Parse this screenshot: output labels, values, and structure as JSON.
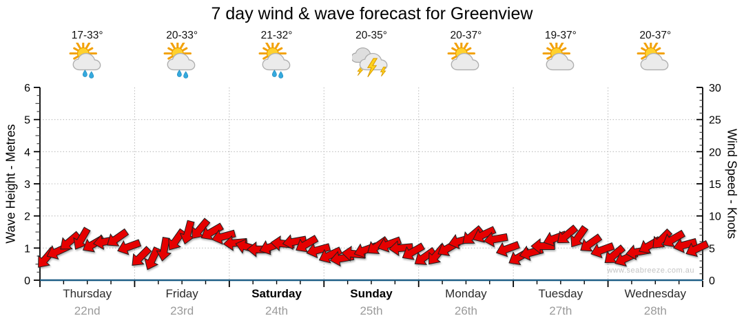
{
  "page": {
    "title": "7 day wind & wave forecast for Greenview"
  },
  "chart_data": {
    "type": "scatter",
    "title": "7 day wind & wave forecast for Greenview",
    "watermark": "www.seabreeze.com.au",
    "left_axis": {
      "label": "Wave Height - Metres",
      "min": 0,
      "max": 6,
      "tick_values": [
        0,
        1,
        2,
        3,
        4,
        5,
        6
      ],
      "minor_tick_step": 0.25,
      "gridlines": [
        1,
        2,
        3,
        4,
        5
      ]
    },
    "right_axis": {
      "label": "Wind Speed - Knots",
      "min": 0,
      "max": 30,
      "tick_values": [
        0,
        5,
        10,
        15,
        20,
        25,
        30
      ],
      "minor_tick_step": 1
    },
    "x_axis": {
      "days": [
        {
          "name": "Thursday",
          "date": "22nd",
          "bold": false,
          "temp": "17-33°",
          "icon": "partly-cloudy-showers"
        },
        {
          "name": "Friday",
          "date": "23rd",
          "bold": false,
          "temp": "20-33°",
          "icon": "partly-cloudy-showers"
        },
        {
          "name": "Saturday",
          "date": "24th",
          "bold": true,
          "temp": "21-32°",
          "icon": "partly-cloudy-showers"
        },
        {
          "name": "Sunday",
          "date": "25th",
          "bold": true,
          "temp": "20-35°",
          "icon": "thunderstorm"
        },
        {
          "name": "Monday",
          "date": "26th",
          "bold": false,
          "temp": "20-37°",
          "icon": "partly-cloudy"
        },
        {
          "name": "Tuesday",
          "date": "27th",
          "bold": false,
          "temp": "19-37°",
          "icon": "partly-cloudy"
        },
        {
          "name": "Wednesday",
          "date": "28th",
          "bold": false,
          "temp": "20-37°",
          "icon": "partly-cloudy"
        }
      ]
    },
    "wind": {
      "points_per_day": 8,
      "speeds_knots": [
        3.4,
        4.5,
        6.0,
        6.4,
        5.6,
        6.0,
        6.5,
        5.2,
        3.6,
        3.3,
        4.8,
        6.2,
        7.4,
        7.9,
        7.5,
        6.8,
        5.8,
        5.2,
        4.8,
        5.2,
        5.7,
        6.0,
        5.6,
        4.7,
        3.9,
        3.4,
        4.1,
        4.7,
        5.3,
        5.6,
        5.0,
        4.4,
        3.6,
        3.9,
        5.0,
        6.1,
        6.9,
        7.1,
        6.4,
        4.9,
        3.6,
        4.3,
        5.3,
        6.5,
        7.0,
        6.7,
        5.7,
        4.7,
        3.9,
        3.4,
        4.4,
        5.4,
        6.3,
        6.4,
        5.5,
        4.9
      ],
      "directions_deg": [
        130,
        155,
        140,
        120,
        150,
        170,
        145,
        160,
        135,
        115,
        100,
        125,
        105,
        130,
        150,
        165,
        175,
        195,
        180,
        160,
        185,
        170,
        150,
        165,
        155,
        170,
        185,
        160,
        145,
        160,
        175,
        150,
        145,
        130,
        150,
        165,
        140,
        155,
        170,
        160,
        150,
        165,
        180,
        160,
        140,
        125,
        145,
        160,
        140,
        155,
        170,
        150,
        135,
        150,
        165,
        155
      ]
    },
    "colors": {
      "arrow_fill": "#e60000",
      "arrow_stroke": "#1f1f1f",
      "x_axis_line": "#1e5e86",
      "axis_line": "#000000",
      "gridline": "#b8b8b8",
      "day_label": "#2b2b2b",
      "date_label": "#9a9a9a",
      "watermark": "#c4c4c4"
    }
  }
}
